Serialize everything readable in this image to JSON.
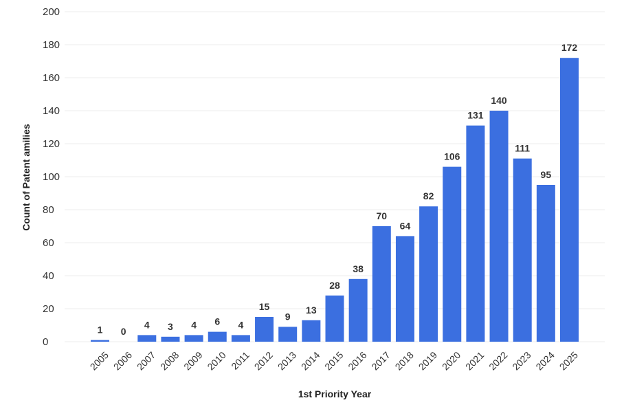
{
  "chart_data": {
    "type": "bar",
    "categories": [
      "2005",
      "2006",
      "2007",
      "2008",
      "2009",
      "2010",
      "2011",
      "2012",
      "2013",
      "2014",
      "2015",
      "2016",
      "2017",
      "2018",
      "2019",
      "2020",
      "2021",
      "2022",
      "2023",
      "2024",
      "2025"
    ],
    "values": [
      1,
      0,
      4,
      3,
      4,
      6,
      4,
      15,
      9,
      13,
      28,
      38,
      70,
      64,
      82,
      106,
      131,
      140,
      111,
      95,
      172
    ],
    "xlabel": "1st Priority Year",
    "ylabel": "Count of Patent amilies",
    "ylim": [
      0,
      200
    ],
    "yticks": [
      0,
      20,
      40,
      60,
      80,
      100,
      120,
      140,
      160,
      180,
      200
    ],
    "grid": true,
    "data_labels": true,
    "bar_color": "#3b6fe0"
  }
}
